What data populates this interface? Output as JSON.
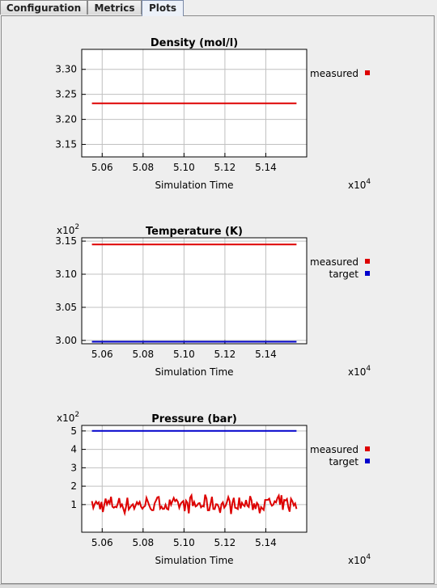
{
  "tabs": [
    {
      "label": "Configuration",
      "active": false
    },
    {
      "label": "Metrics",
      "active": false
    },
    {
      "label": "Plots",
      "active": true
    }
  ],
  "colors": {
    "measured": "#dd0000",
    "target": "#0000cc",
    "grid": "#c0c0c0"
  },
  "chart_data": [
    {
      "type": "line",
      "title": "Density (mol/l)",
      "xlabel": "Simulation Time",
      "x_multiplier": "x10",
      "x_multiplier_exp": "4",
      "y_multiplier": "",
      "y_multiplier_exp": "",
      "xlim": [
        5.05,
        5.16
      ],
      "ylim": [
        3.125,
        3.34
      ],
      "x_ticks": [
        "5.06",
        "5.08",
        "5.10",
        "5.12",
        "5.14"
      ],
      "y_ticks": [
        "3.30",
        "3.25",
        "3.20",
        "3.15"
      ],
      "y_tick_values": [
        3.3,
        3.25,
        3.2,
        3.15
      ],
      "series": [
        {
          "name": "measured",
          "color": "#dd0000",
          "x": [
            5.055,
            5.155
          ],
          "y": [
            3.232,
            3.232
          ]
        }
      ]
    },
    {
      "type": "line",
      "title": "Temperature (K)",
      "xlabel": "Simulation Time",
      "x_multiplier": "x10",
      "x_multiplier_exp": "4",
      "y_multiplier": "x10",
      "y_multiplier_exp": "2",
      "xlim": [
        5.05,
        5.16
      ],
      "ylim": [
        2.995,
        3.155
      ],
      "x_ticks": [
        "5.06",
        "5.08",
        "5.10",
        "5.12",
        "5.14"
      ],
      "y_ticks": [
        "3.15",
        "3.10",
        "3.05",
        "3.00"
      ],
      "y_tick_values": [
        3.15,
        3.1,
        3.05,
        3.0
      ],
      "series": [
        {
          "name": "measured",
          "color": "#dd0000",
          "x": [
            5.055,
            5.155
          ],
          "y": [
            3.145,
            3.145
          ]
        },
        {
          "name": "target",
          "color": "#0000cc",
          "x": [
            5.055,
            5.155
          ],
          "y": [
            2.998,
            2.998
          ]
        }
      ]
    },
    {
      "type": "line",
      "title": "Pressure (bar)",
      "xlabel": "Simulation Time",
      "x_multiplier": "x10",
      "x_multiplier_exp": "4",
      "y_multiplier": "x10",
      "y_multiplier_exp": "2",
      "xlim": [
        5.05,
        5.16
      ],
      "ylim": [
        -0.5,
        5.3
      ],
      "x_ticks": [
        "5.06",
        "5.08",
        "5.10",
        "5.12",
        "5.14"
      ],
      "y_ticks": [
        "5",
        "4",
        "3",
        "2",
        "1"
      ],
      "y_tick_values": [
        5,
        4,
        3,
        2,
        1
      ],
      "series": [
        {
          "name": "measured",
          "color": "#dd0000",
          "x": [
            5.055,
            5.155
          ],
          "y": [
            1.0,
            1.0
          ],
          "noise": 0.55
        },
        {
          "name": "target",
          "color": "#0000cc",
          "x": [
            5.055,
            5.155
          ],
          "y": [
            5.0,
            5.0
          ]
        }
      ]
    }
  ]
}
